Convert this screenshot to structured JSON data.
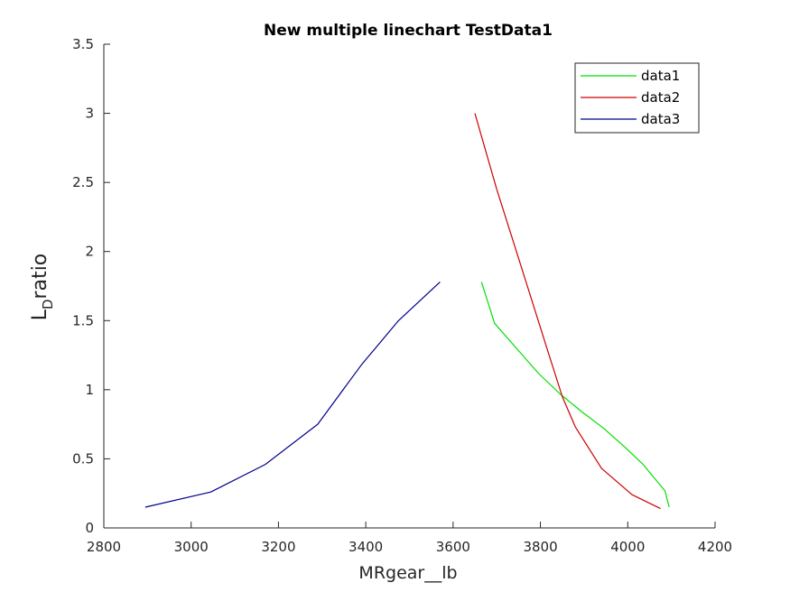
{
  "chart_data": {
    "type": "line",
    "title": "New multiple linechart TestData1",
    "xlabel": "MRgear__lb",
    "ylabel": {
      "main": "L",
      "subscript": "D",
      "rest": "ratio"
    },
    "xlim": [
      2800,
      4200
    ],
    "ylim": [
      0,
      3.5
    ],
    "xticks": [
      2800,
      3000,
      3200,
      3400,
      3600,
      3800,
      4000,
      4200
    ],
    "yticks": [
      0,
      0.5,
      1,
      1.5,
      2,
      2.5,
      3,
      3.5
    ],
    "xtick_labels": [
      "2800",
      "3000",
      "3200",
      "3400",
      "3600",
      "3800",
      "4000",
      "4200"
    ],
    "ytick_labels": [
      "0",
      "0.5",
      "1",
      "1.5",
      "2",
      "2.5",
      "3",
      "3.5"
    ],
    "grid": false,
    "legend_position": "top-right",
    "series": [
      {
        "name": "data1",
        "color": "#00e000",
        "x": [
          3665,
          3695,
          3745,
          3795,
          3845,
          3895,
          3945,
          3995,
          4035,
          4085,
          4095
        ],
        "y": [
          1.78,
          1.48,
          1.3,
          1.12,
          0.97,
          0.84,
          0.72,
          0.58,
          0.46,
          0.27,
          0.15
        ]
      },
      {
        "name": "data2",
        "color": "#cc0000",
        "x": [
          3650,
          3700,
          3740,
          3780,
          3820,
          3850,
          3880,
          3940,
          4010,
          4075
        ],
        "y": [
          3.0,
          2.45,
          2.05,
          1.65,
          1.25,
          0.95,
          0.73,
          0.43,
          0.24,
          0.14
        ]
      },
      {
        "name": "data3",
        "color": "#00008b",
        "x": [
          2895,
          3045,
          3170,
          3290,
          3390,
          3475,
          3570
        ],
        "y": [
          0.15,
          0.26,
          0.46,
          0.75,
          1.18,
          1.5,
          1.78
        ]
      }
    ]
  }
}
